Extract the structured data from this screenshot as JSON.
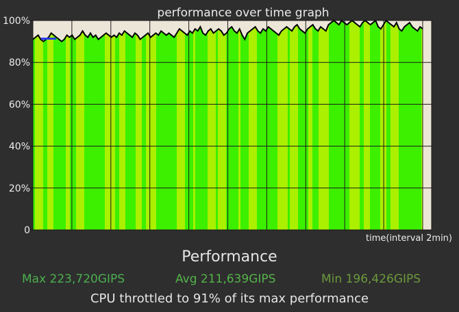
{
  "chart_data": {
    "type": "area",
    "title": "performance over time graph",
    "xlabel": "time(interval 2min)",
    "ylabel": "",
    "y_tick_labels": [
      "0",
      "20%",
      "40%",
      "60%",
      "80%",
      "100%"
    ],
    "ylim": [
      0,
      100
    ],
    "grid": true,
    "series": [
      {
        "values": [
          91,
          92,
          93,
          91,
          90,
          91,
          92,
          94,
          93,
          92,
          91,
          90,
          91,
          93,
          92,
          93,
          91,
          92,
          93,
          95,
          93,
          92,
          94,
          92,
          93,
          91,
          92,
          93,
          94,
          93,
          92,
          93,
          92,
          94,
          93,
          95,
          94,
          93,
          92,
          94,
          93,
          91,
          92,
          93,
          94,
          92,
          93,
          94,
          93,
          95,
          94,
          93,
          94,
          93,
          92,
          94,
          96,
          95,
          94,
          93,
          95,
          94,
          96,
          95,
          97,
          94,
          93,
          95,
          96,
          94,
          95,
          96,
          95,
          93,
          94,
          96,
          97,
          95,
          94,
          96,
          93,
          91,
          94,
          95,
          96,
          97,
          95,
          94,
          96,
          95,
          97,
          96,
          95,
          94,
          93,
          95,
          96,
          97,
          96,
          95,
          97,
          98,
          96,
          95,
          94,
          96,
          97,
          98,
          96,
          95,
          97,
          96,
          95,
          98,
          99,
          100,
          99,
          98,
          100,
          99,
          98,
          99,
          100,
          99,
          98,
          97,
          99,
          100,
          99,
          98,
          99,
          100,
          97,
          96,
          98,
          100,
          99,
          98,
          97,
          99,
          96,
          95,
          97,
          98,
          99,
          97,
          96,
          95,
          97,
          96
        ]
      }
    ]
  },
  "labels": {
    "performance_heading": "Performance",
    "max": "Max 223,720GIPS",
    "avg": "Avg 211,639GIPS",
    "min": "Min 196,426GIPS",
    "throttle": "CPU throttled to 91% of its max performance"
  },
  "colors": {
    "background": "#2e2e2e",
    "plot_background": "#ece6d8",
    "fill_light": "#3cf000",
    "fill_dark": "#aaf000",
    "line": "#000000"
  }
}
